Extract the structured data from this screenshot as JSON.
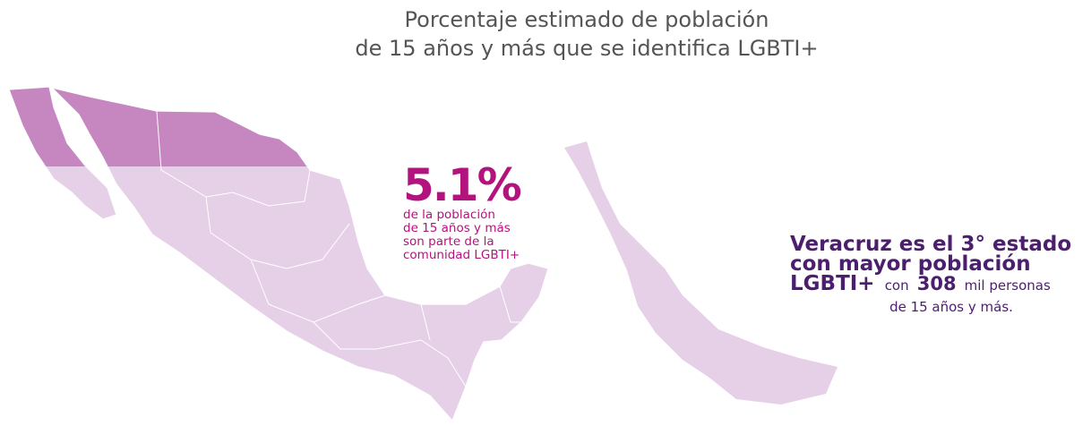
{
  "title": [
    "Porcentaje estimado de población",
    "de 15 años y más que se identifica LGBTI+"
  ],
  "national": {
    "value": "5.1%",
    "description": [
      "de la población",
      "de 15 años y más",
      "son parte de la",
      "comunidad LGBTI+"
    ]
  },
  "veracruz": {
    "headline": [
      "Veracruz es el 3° estado",
      "con mayor población",
      "LGBTI+"
    ],
    "detail": {
      "prefix": "con",
      "number": "308",
      "suffix": "mil personas",
      "last_line": "de 15 años y más."
    }
  }
}
